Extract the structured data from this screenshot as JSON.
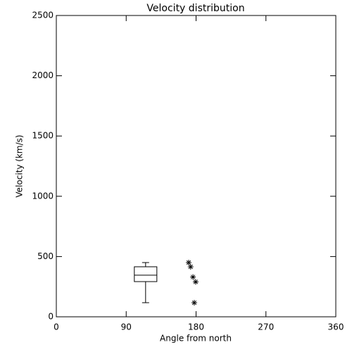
{
  "chart_data": {
    "type": "scatter",
    "title": "Velocity distribution",
    "x_label": "Angle from north",
    "y_label": "Velocity (km/s)",
    "x": [
      170.5,
      173,
      176,
      179.5,
      177.7
    ],
    "values": [
      450,
      415,
      330,
      290,
      117
    ],
    "box": {
      "x": 115,
      "min": 117,
      "q1": 292,
      "median": 345,
      "q3": 415,
      "max": 450
    },
    "color": "#000000",
    "xlim": [
      0,
      360
    ],
    "xticks": [
      0,
      90,
      180,
      270,
      360
    ],
    "ylim": [
      0,
      2500
    ],
    "yticks": [
      0,
      500,
      1000,
      1500,
      2000,
      2500
    ]
  }
}
